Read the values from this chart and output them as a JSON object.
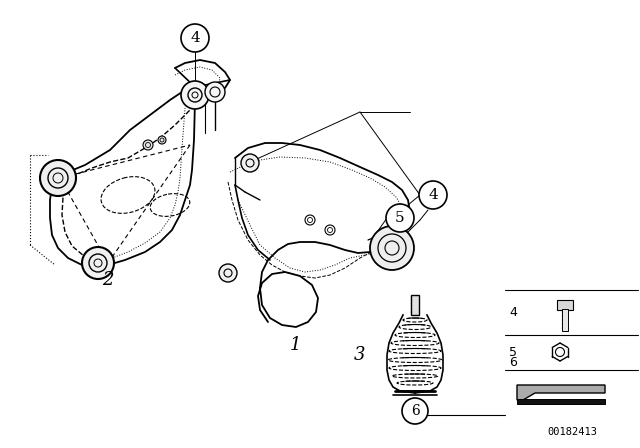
{
  "bg_color": "#ffffff",
  "line_color": "#000000",
  "watermark": "00182413",
  "fig_width": 6.4,
  "fig_height": 4.48,
  "dpi": 100
}
